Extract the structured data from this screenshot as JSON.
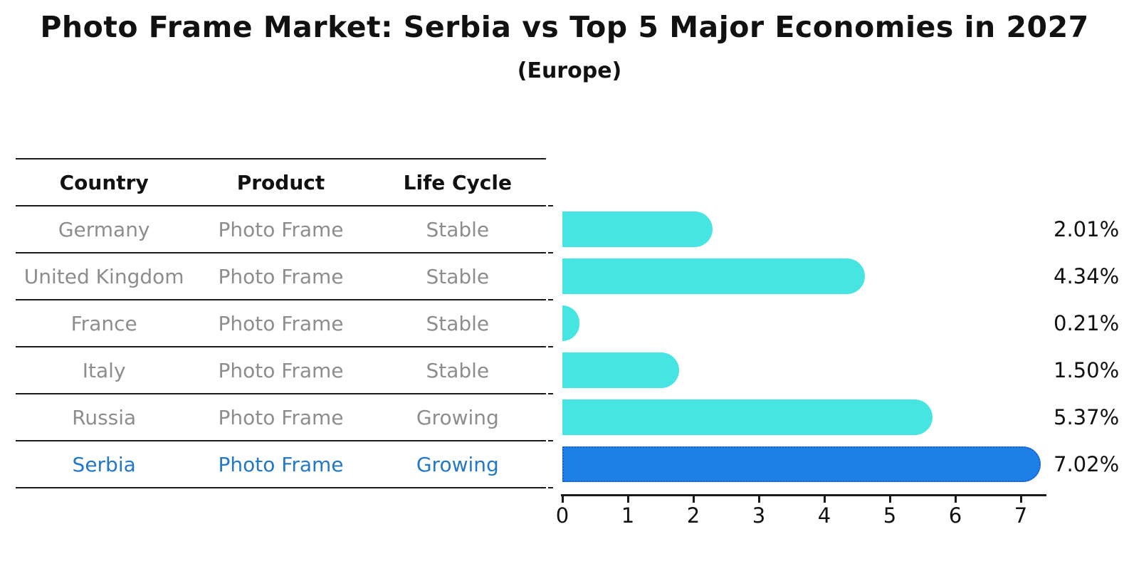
{
  "title": "Photo Frame Market: Serbia vs Top 5 Major Economies in 2027",
  "subtitle": "(Europe)",
  "table": {
    "columns": [
      "Country",
      "Product",
      "Life Cycle"
    ],
    "rows": [
      {
        "country": "Germany",
        "product": "Photo Frame",
        "life_cycle": "Stable"
      },
      {
        "country": "United Kingdom",
        "product": "Photo Frame",
        "life_cycle": "Stable"
      },
      {
        "country": "France",
        "product": "Photo Frame",
        "life_cycle": "Stable"
      },
      {
        "country": "Italy",
        "product": "Photo Frame",
        "life_cycle": "Stable"
      },
      {
        "country": "Russia",
        "product": "Photo Frame",
        "life_cycle": "Growing"
      },
      {
        "country": "Serbia",
        "product": "Photo Frame",
        "life_cycle": "Growing"
      }
    ],
    "highlight_row": "Serbia"
  },
  "chart_data": {
    "type": "bar",
    "orientation": "horizontal",
    "title": "Photo Frame Market: Serbia vs Top 5 Major Economies in 2027",
    "subtitle": "(Europe)",
    "categories": [
      "Germany",
      "United Kingdom",
      "France",
      "Italy",
      "Russia",
      "Serbia"
    ],
    "values": [
      2.01,
      4.34,
      0.21,
      1.5,
      5.37,
      7.02
    ],
    "value_labels": [
      "2.01%",
      "4.34%",
      "0.21%",
      "1.50%",
      "5.37%",
      "7.02%"
    ],
    "xlabel": "",
    "ylabel": "",
    "xlim": [
      0,
      7.4
    ],
    "xticks": [
      "0",
      "1",
      "2",
      "3",
      "4",
      "5",
      "6",
      "7"
    ],
    "grid": false,
    "legend": "none",
    "highlight_index": 5
  },
  "colors": {
    "bar_color": "#46e5e2",
    "highlight_bar_color": "#1f7fe8",
    "highlight_bar_border": "#1a5fc4",
    "highlight_text": "#2478c8",
    "row_text": "#8d8d8d",
    "axis_and_lines": "#1a1a1a"
  }
}
